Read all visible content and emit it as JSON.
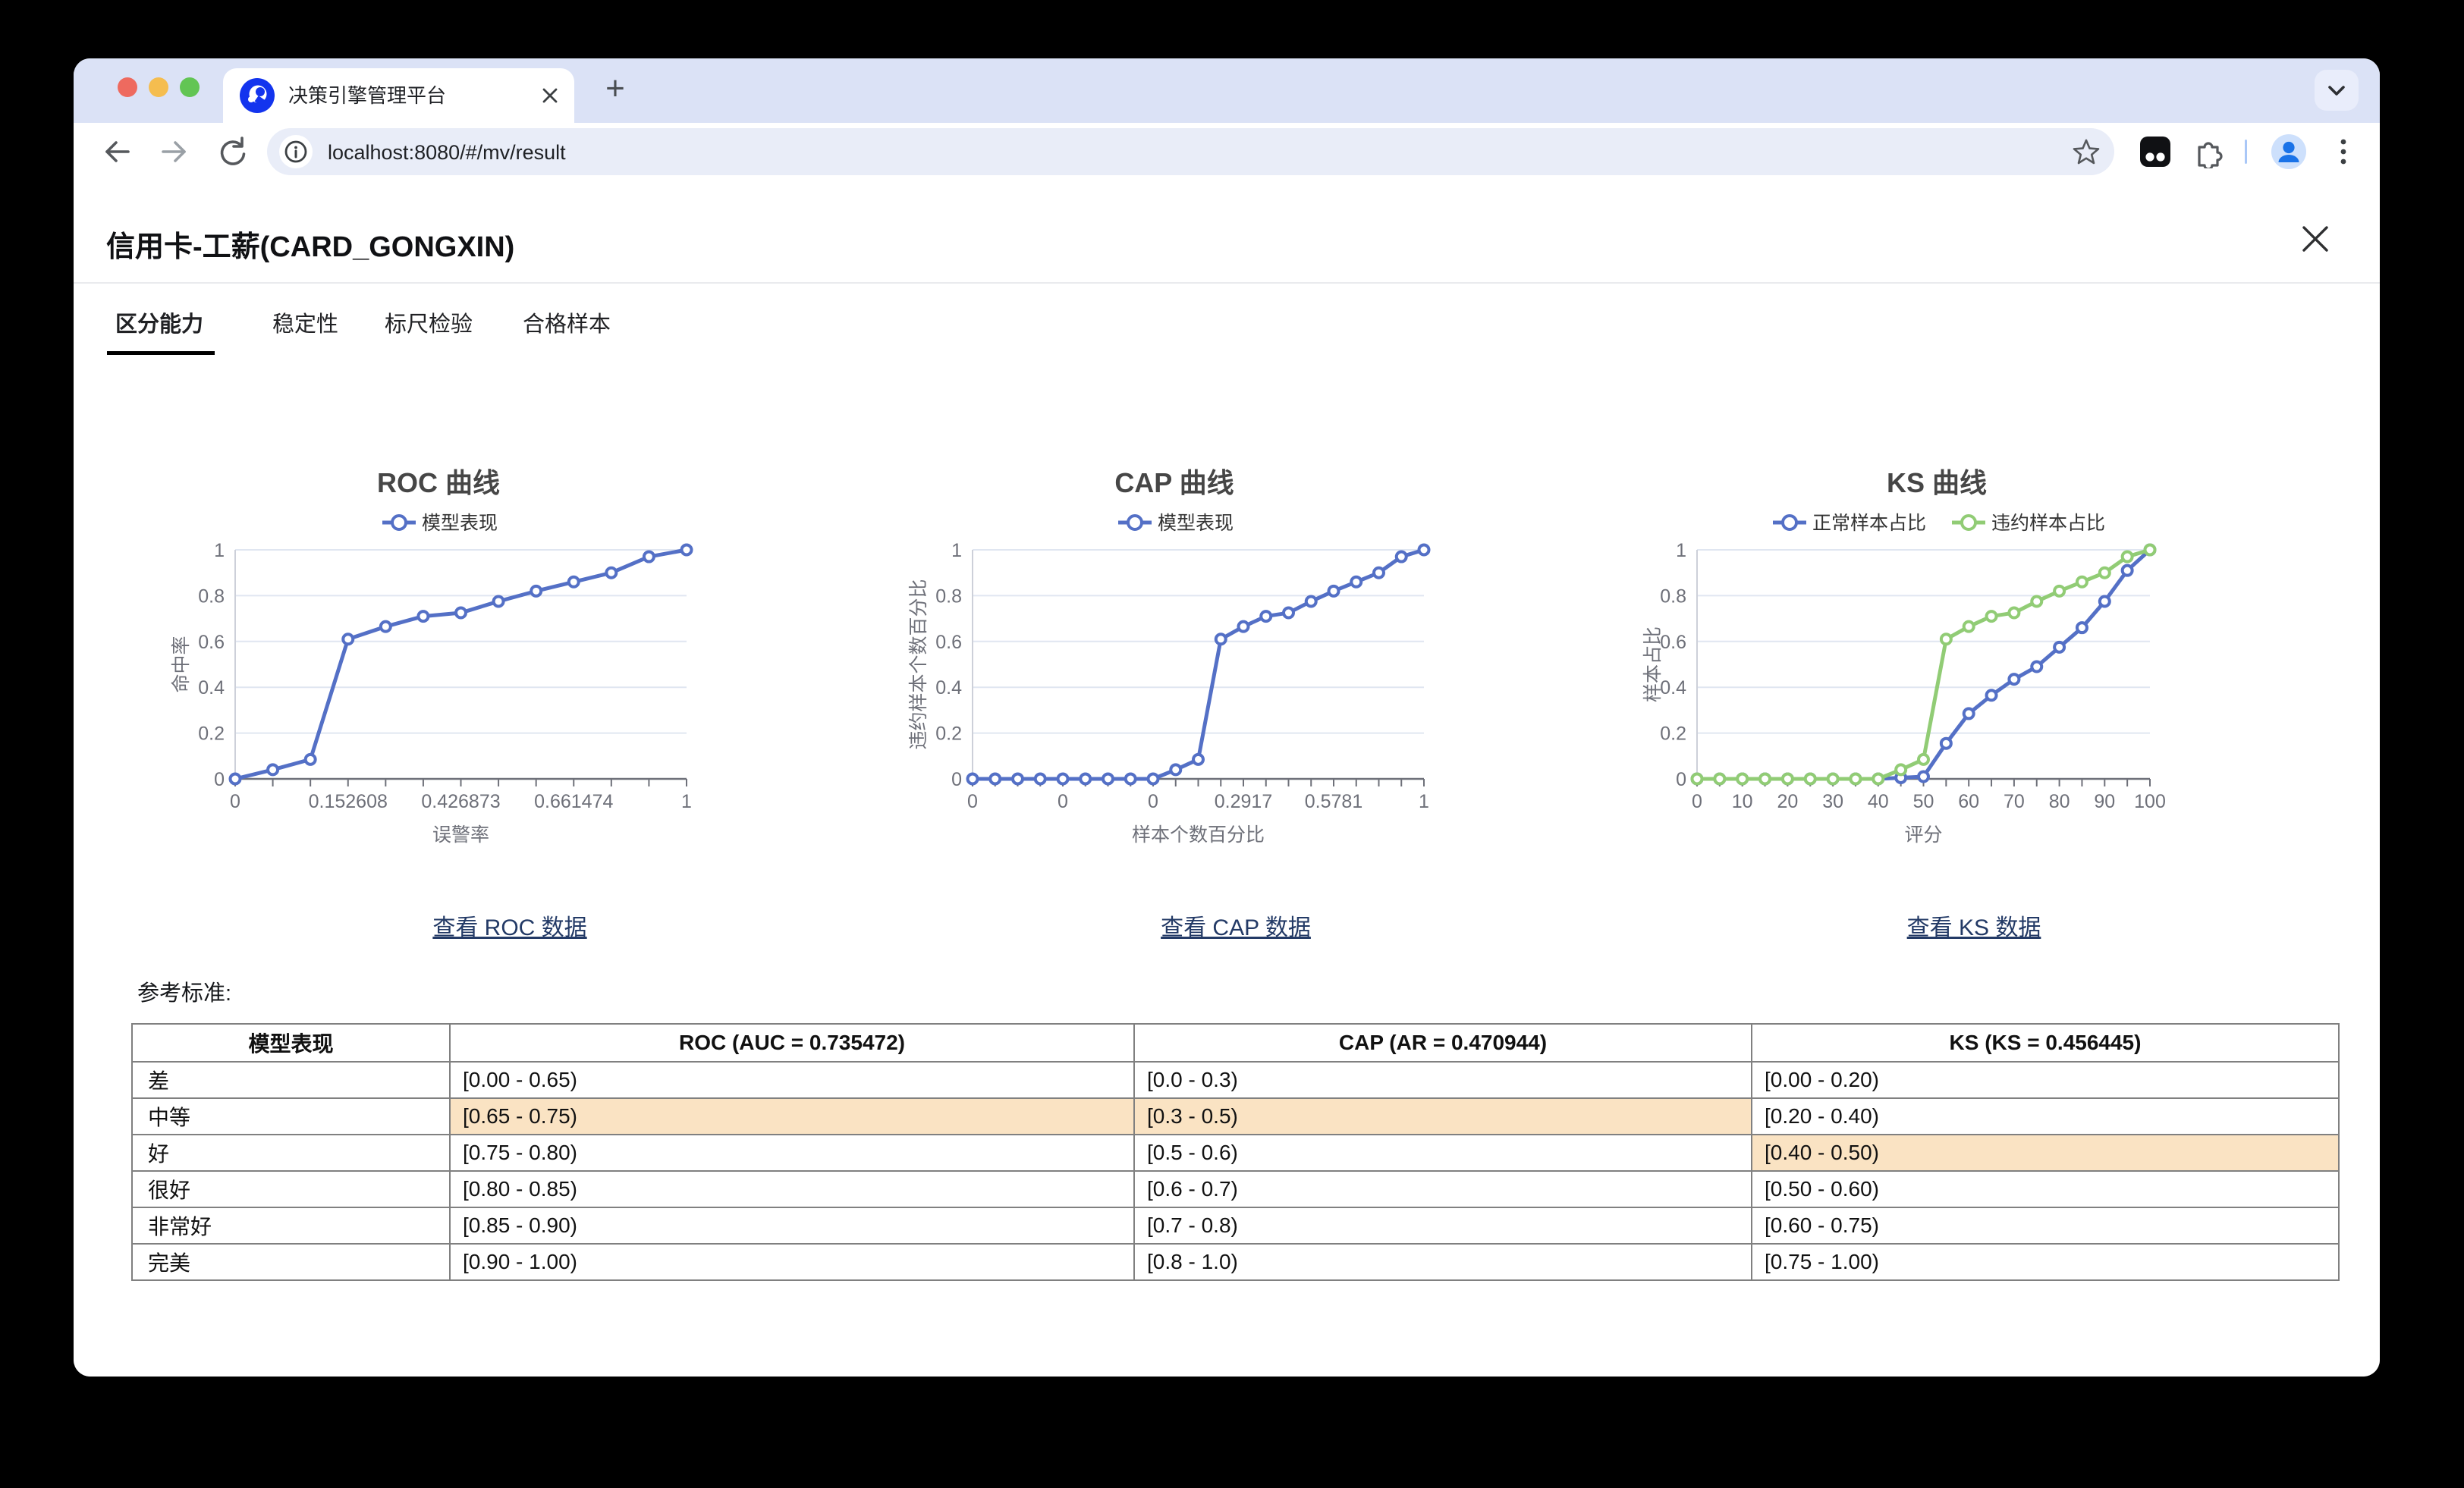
{
  "browser": {
    "tab_title": "决策引擎管理平台",
    "url": "localhost:8080/#/mv/result",
    "new_tab_label": "+"
  },
  "page": {
    "title": "信用卡-工薪(CARD_GONGXIN)",
    "tabs": [
      {
        "label": "区分能力",
        "active": true
      },
      {
        "label": "稳定性",
        "active": false
      },
      {
        "label": "标尺检验",
        "active": false
      },
      {
        "label": "合格样本",
        "active": false
      }
    ],
    "links": {
      "roc": "查看 ROC 数据",
      "cap": "查看 CAP 数据",
      "ks": "查看 KS 数据"
    },
    "reference_label": "参考标准:"
  },
  "chart_data": [
    {
      "id": "roc",
      "type": "line",
      "title": "ROC 曲线",
      "xlabel": "误警率",
      "ylabel": "命中率",
      "ylim": [
        0,
        1
      ],
      "y_ticks": [
        0,
        0.2,
        0.4,
        0.6,
        0.8,
        1
      ],
      "x_tick_labels": [
        "0",
        "0.152608",
        "0.426873",
        "0.661474",
        "1"
      ],
      "x_tick_indices": [
        0,
        3,
        6,
        9,
        12
      ],
      "legend_position": "top",
      "grid": true,
      "series": [
        {
          "name": "模型表现",
          "color": "#5470C6",
          "values": [
            0,
            0.04,
            0.085,
            0.61,
            0.665,
            0.71,
            0.725,
            0.775,
            0.82,
            0.86,
            0.9,
            0.97,
            1
          ]
        }
      ]
    },
    {
      "id": "cap",
      "type": "line",
      "title": "CAP 曲线",
      "xlabel": "样本个数百分比",
      "ylabel": "违约样本个数百分比",
      "ylim": [
        0,
        1
      ],
      "y_ticks": [
        0,
        0.2,
        0.4,
        0.6,
        0.8,
        1
      ],
      "x_tick_labels": [
        "0",
        "0",
        "0",
        "0.2917",
        "0.5781",
        "1"
      ],
      "x_tick_indices": [
        0,
        4,
        8,
        12,
        16,
        20
      ],
      "legend_position": "top",
      "grid": true,
      "series": [
        {
          "name": "模型表现",
          "color": "#5470C6",
          "values": [
            0,
            0,
            0,
            0,
            0,
            0,
            0,
            0,
            0,
            0.04,
            0.085,
            0.61,
            0.665,
            0.71,
            0.725,
            0.775,
            0.82,
            0.86,
            0.9,
            0.97,
            1
          ]
        }
      ]
    },
    {
      "id": "ks",
      "type": "line",
      "title": "KS 曲线",
      "xlabel": "评分",
      "ylabel": "样本占比",
      "ylim": [
        0,
        1
      ],
      "y_ticks": [
        0,
        0.2,
        0.4,
        0.6,
        0.8,
        1
      ],
      "x_tick_labels": [
        "0",
        "10",
        "20",
        "30",
        "40",
        "50",
        "60",
        "70",
        "80",
        "90",
        "100"
      ],
      "x_tick_indices": [
        0,
        2,
        4,
        6,
        8,
        10,
        12,
        14,
        16,
        18,
        20
      ],
      "legend_position": "top",
      "grid": true,
      "series": [
        {
          "name": "正常样本占比",
          "color": "#5470C6",
          "values": [
            0,
            0,
            0,
            0,
            0,
            0,
            0,
            0,
            0,
            0.005,
            0.01,
            0.155,
            0.285,
            0.365,
            0.435,
            0.49,
            0.575,
            0.66,
            0.775,
            0.91,
            1
          ]
        },
        {
          "name": "违约样本占比",
          "color": "#91CC75",
          "values": [
            0,
            0,
            0,
            0,
            0,
            0,
            0,
            0,
            0,
            0.04,
            0.085,
            0.61,
            0.665,
            0.71,
            0.725,
            0.775,
            0.82,
            0.86,
            0.9,
            0.97,
            1
          ]
        }
      ]
    }
  ],
  "table": {
    "headers": [
      "模型表现",
      "ROC (AUC = 0.735472)",
      "CAP (AR = 0.470944)",
      "KS (KS = 0.456445)"
    ],
    "rows": [
      {
        "label": "差",
        "roc": "[0.00 - 0.65)",
        "cap": "[0.0 - 0.3)",
        "ks": "[0.00 - 0.20)",
        "highlight": []
      },
      {
        "label": "中等",
        "roc": "[0.65 - 0.75)",
        "cap": "[0.3 - 0.5)",
        "ks": "[0.20 - 0.40)",
        "highlight": [
          "roc",
          "cap"
        ]
      },
      {
        "label": "好",
        "roc": "[0.75 - 0.80)",
        "cap": "[0.5 - 0.6)",
        "ks": "[0.40 - 0.50)",
        "highlight": [
          "ks"
        ]
      },
      {
        "label": "很好",
        "roc": "[0.80 - 0.85)",
        "cap": "[0.6 - 0.7)",
        "ks": "[0.50 - 0.60)",
        "highlight": []
      },
      {
        "label": "非常好",
        "roc": "[0.85 - 0.90)",
        "cap": "[0.7 - 0.8)",
        "ks": "[0.60 - 0.75)",
        "highlight": []
      },
      {
        "label": "完美",
        "roc": "[0.90 - 1.00)",
        "cap": "[0.8 - 1.0)",
        "ks": "[0.75 - 1.00)",
        "highlight": []
      }
    ]
  },
  "colors": {
    "series_blue": "#5470C6",
    "series_green": "#91CC75",
    "table_highlight": "#FAE3C3",
    "link": "#233A66",
    "grid_line": "#E0E6F1",
    "axis": "#6E7079",
    "chart_title": "#464646",
    "legend_text": "#333333"
  }
}
